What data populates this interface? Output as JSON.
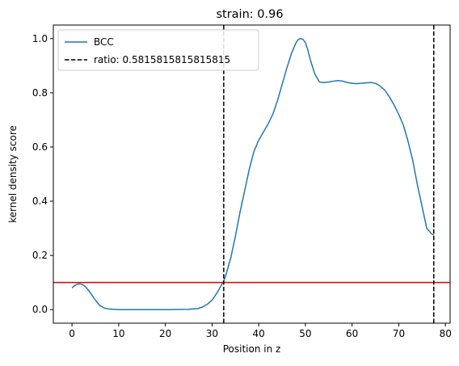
{
  "chart_data": {
    "type": "line",
    "title": "strain: 0.96",
    "xlabel": "Position in z",
    "ylabel": "kernel density score",
    "xlim": [
      -4,
      81
    ],
    "ylim": [
      -0.05,
      1.05
    ],
    "xticks": [
      0,
      10,
      20,
      30,
      40,
      50,
      60,
      70,
      80
    ],
    "yticks": [
      0.0,
      0.2,
      0.4,
      0.6,
      0.8,
      1.0
    ],
    "xtick_labels": [
      "0",
      "10",
      "20",
      "30",
      "40",
      "50",
      "60",
      "70",
      "80"
    ],
    "ytick_labels": [
      "0.0",
      "0.2",
      "0.4",
      "0.6",
      "0.8",
      "1.0"
    ],
    "grid": false,
    "legend_position": "top-left",
    "series": [
      {
        "name": "BCC",
        "color": "#1f77b4",
        "style": "solid",
        "x": [
          0,
          0.5,
          1,
          1.5,
          2,
          2.5,
          3,
          3.5,
          4,
          5,
          6,
          7,
          8,
          9,
          10,
          12,
          15,
          20,
          25,
          27,
          28,
          29,
          30,
          31,
          31.5,
          32,
          32.5,
          33,
          34,
          35,
          36,
          37,
          38,
          39,
          40,
          41,
          42,
          43,
          44,
          45,
          46,
          47,
          48,
          48.5,
          49,
          49.5,
          50,
          50.5,
          51,
          52,
          53,
          54,
          55,
          56,
          57,
          58,
          59,
          60,
          61,
          62,
          63,
          64,
          65,
          66,
          67,
          68,
          69,
          70,
          71,
          72,
          73,
          74,
          75,
          76,
          77,
          77.5
        ],
        "y": [
          0.08,
          0.088,
          0.093,
          0.095,
          0.094,
          0.09,
          0.082,
          0.072,
          0.06,
          0.035,
          0.015,
          0.005,
          0.002,
          0.001,
          0.0,
          0.0,
          0.0,
          0.0,
          0.001,
          0.004,
          0.01,
          0.02,
          0.035,
          0.06,
          0.075,
          0.09,
          0.105,
          0.13,
          0.19,
          0.27,
          0.36,
          0.44,
          0.52,
          0.585,
          0.625,
          0.655,
          0.685,
          0.72,
          0.77,
          0.83,
          0.89,
          0.945,
          0.985,
          0.997,
          1.0,
          0.997,
          0.985,
          0.96,
          0.925,
          0.87,
          0.84,
          0.838,
          0.84,
          0.843,
          0.845,
          0.843,
          0.838,
          0.835,
          0.834,
          0.835,
          0.837,
          0.838,
          0.835,
          0.825,
          0.81,
          0.785,
          0.755,
          0.72,
          0.68,
          0.62,
          0.55,
          0.46,
          0.38,
          0.3,
          0.28,
          0.275
        ]
      }
    ],
    "vlines": [
      {
        "name": "ratio: 0.5815815815815815",
        "x": 32.5,
        "color": "#000000",
        "style": "dashed"
      },
      {
        "x": 77.5,
        "color": "#000000",
        "style": "dashed"
      }
    ],
    "hlines": [
      {
        "y": 0.1,
        "color": "#e00000",
        "style": "solid"
      }
    ],
    "legend": [
      {
        "label": "BCC",
        "color": "#1f77b4",
        "style": "solid"
      },
      {
        "label": "ratio: 0.5815815815815815",
        "color": "#000000",
        "style": "dashed"
      }
    ]
  }
}
